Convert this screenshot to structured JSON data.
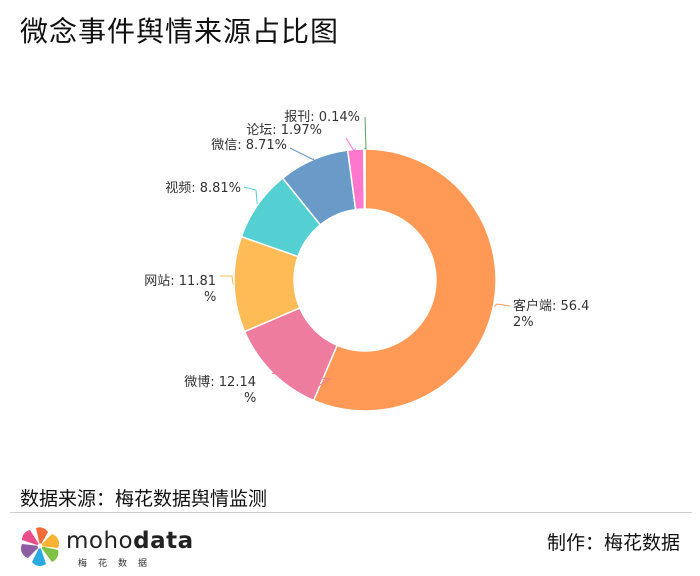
{
  "chart_data": {
    "type": "pie",
    "title": "微念事件舆情来源占比图",
    "slices": [
      {
        "name": "客户端",
        "value": 56.42,
        "label_lines": [
          "客户端: 56.4",
          "2%"
        ],
        "color": "#FF9955"
      },
      {
        "name": "微博",
        "value": 12.14,
        "label_lines": [
          "微博: 12.14",
          "%"
        ],
        "color": "#EE7C9E"
      },
      {
        "name": "网站",
        "value": 11.81,
        "label_lines": [
          "网站: 11.81",
          "%"
        ],
        "color": "#FFBB55"
      },
      {
        "name": "视频",
        "value": 8.81,
        "label_lines": [
          "视频: 8.81%"
        ],
        "color": "#55D0D2"
      },
      {
        "name": "微信",
        "value": 8.71,
        "label_lines": [
          "微信: 8.71%"
        ],
        "color": "#6A9BC8"
      },
      {
        "name": "论坛",
        "value": 1.97,
        "label_lines": [
          "论坛: 1.97%"
        ],
        "color": "#FF77CC"
      },
      {
        "name": "报刊",
        "value": 0.14,
        "label_lines": [
          "报刊: 0.14%"
        ],
        "color": "#5CA05C"
      }
    ]
  },
  "footer": {
    "source": "数据来源：梅花数据舆情监测",
    "maker": "制作：梅花数据",
    "brand_light": "moho",
    "brand_bold": "data",
    "brand_sub": "梅花数据"
  }
}
